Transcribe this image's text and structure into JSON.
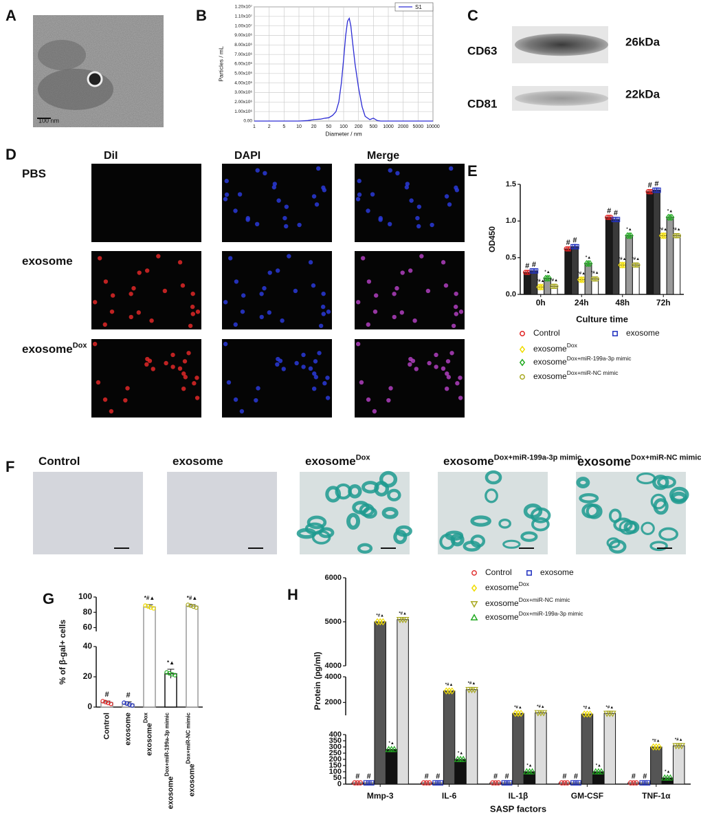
{
  "panel_labels": [
    "A",
    "B",
    "C",
    "D",
    "E",
    "F",
    "G",
    "H"
  ],
  "tem_image": {
    "scale_bar": "100 nm"
  },
  "western_blot": {
    "rows": [
      {
        "protein": "CD63",
        "size": "26kDa"
      },
      {
        "protein": "CD81",
        "size": "22kDa"
      }
    ]
  },
  "fluorescence": {
    "columns": [
      "DiI",
      "DAPI",
      "Merge"
    ],
    "rows": [
      {
        "label": "PBS"
      },
      {
        "label": "exosome"
      },
      {
        "label": "exosome",
        "sup": "Dox"
      }
    ]
  },
  "staining": {
    "columns": [
      {
        "label": "Control"
      },
      {
        "label": "exosome"
      },
      {
        "label": "exosome",
        "sup": "Dox"
      },
      {
        "label": "exosome",
        "sup": "Dox+miR-199a-3p mimic"
      },
      {
        "label": "exosome",
        "sup": "Dox+miR-NC mimic"
      }
    ]
  },
  "chart_data": [
    {
      "type": "line",
      "xlabel": "Diameter / nm",
      "ylabel": "Particles / mL",
      "xscale": "log",
      "xlim": [
        1,
        10000
      ],
      "xticks": [
        1,
        2,
        5,
        10,
        20,
        50,
        100,
        200,
        500,
        1000,
        2000,
        5000,
        10000
      ],
      "ylim": [
        0,
        12000000
      ],
      "yticks": [
        {
          "value": 0,
          "label": "0.00"
        },
        {
          "value": 1000000,
          "label": "1.00x10⁶"
        },
        {
          "value": 2000000,
          "label": "2.00x10⁶"
        },
        {
          "value": 3000000,
          "label": "3.00x10⁶"
        },
        {
          "value": 4000000,
          "label": "4.00x10⁶"
        },
        {
          "value": 5000000,
          "label": "5.00x10⁶"
        },
        {
          "value": 6000000,
          "label": "6.00x10⁶"
        },
        {
          "value": 7000000,
          "label": "7.00x10⁶"
        },
        {
          "value": 8000000,
          "label": "8.00x10⁶"
        },
        {
          "value": 9000000,
          "label": "9.00x10⁶"
        },
        {
          "value": 10000000,
          "label": "1.00x10⁷"
        },
        {
          "value": 11000000,
          "label": "1.10x10⁷"
        },
        {
          "value": 12000000,
          "label": "1.20x10⁷"
        }
      ],
      "grid": true,
      "legend": "upper right",
      "x": [
        1,
        10,
        15,
        20,
        30,
        40,
        50,
        60,
        70,
        80,
        90,
        100,
        110,
        120,
        130,
        140,
        150,
        170,
        200,
        250,
        300,
        400,
        500,
        600,
        700,
        10000
      ],
      "series": [
        {
          "name": "S1",
          "color": "#2a2ad4",
          "values": [
            0,
            0,
            50000,
            150000,
            200000,
            300000,
            350000,
            600000,
            1000000,
            2000000,
            4000000,
            6500000,
            9000000,
            10500000,
            10800000,
            10000000,
            8500000,
            6000000,
            3500000,
            1500000,
            500000,
            150000,
            300000,
            50000,
            0,
            0
          ]
        }
      ]
    },
    {
      "type": "grouped-bar",
      "xlabel": "Culture time",
      "ylabel": "OD450",
      "legend": "bottom",
      "categories": [
        "0h",
        "24h",
        "48h",
        "72h"
      ],
      "ylim": [
        0,
        1.5
      ],
      "yticks": [
        {
          "value": 0,
          "label": "0.0"
        },
        0.5,
        {
          "value": 1,
          "label": "1.0"
        },
        1.5
      ],
      "series": [
        {
          "name": "Control",
          "color": "#e02020",
          "bar_color": "#1a1a1a",
          "marker": "circle",
          "sig": "#",
          "values": [
            0.3,
            0.62,
            1.05,
            1.4
          ]
        },
        {
          "name": "exosome",
          "color": "#2030c0",
          "bar_color": "#3a3a3a",
          "marker": "square",
          "sig": "#",
          "values": [
            0.32,
            0.65,
            1.02,
            1.42
          ]
        },
        {
          "name": "exosome",
          "name_sup": "Dox",
          "color": "#f0dc00",
          "bar_color": "#ffffff",
          "marker": "diamond",
          "sig": "*#▲",
          "values": [
            0.1,
            0.2,
            0.4,
            0.8
          ]
        },
        {
          "name": "exosome",
          "name_sup": "Dox+miR-199a-3p mimic",
          "color": "#22aa22",
          "bar_color": "#9a9a9a",
          "marker": "diamond",
          "sig": "*▲",
          "values": [
            0.22,
            0.42,
            0.8,
            1.05
          ]
        },
        {
          "name": "exosome",
          "name_sup": "Dox+miR-NC mimic",
          "color": "#a8a820",
          "bar_color": "#ffffff",
          "marker": "circle",
          "sig": "*#▲",
          "values": [
            0.11,
            0.21,
            0.4,
            0.8
          ]
        }
      ]
    },
    {
      "type": "bar",
      "ylabel": "% of β-gal+ cells",
      "categories": [
        {
          "label": "Control"
        },
        {
          "label": "exosome"
        },
        {
          "label": "exosome",
          "sup": "Dox"
        },
        {
          "label": "exosome",
          "sup": "Dox+miR-199a-3p mimic"
        },
        {
          "label": "exosome",
          "sup": "Dox+miR-NC mimic"
        }
      ],
      "values": [
        3,
        2,
        87,
        22,
        88
      ],
      "errors": [
        1,
        1.5,
        3,
        3,
        2
      ],
      "colors": [
        "#e02020",
        "#2030c0",
        "#f0dc00",
        "#22aa22",
        "#a8a820"
      ],
      "sig_labels": [
        "#",
        "#",
        "*#▲",
        "*▲",
        "*#▲"
      ],
      "y_segments": [
        {
          "ylim": [
            0,
            40
          ],
          "yticks": [
            0,
            20,
            40
          ]
        },
        {
          "ylim": [
            55,
            100
          ],
          "yticks": [
            60,
            80,
            100
          ]
        }
      ]
    },
    {
      "type": "grouped-bar",
      "xlabel": "SASP factors",
      "ylabel": "Protein (pg/ml)",
      "legend": "top",
      "categories": [
        "Mmp-3",
        "IL-6",
        "IL-1β",
        "GM-CSF",
        "TNF-1α"
      ],
      "y_segments": [
        {
          "ylim": [
            0,
            400
          ],
          "yticks": [
            0,
            50,
            100,
            150,
            200,
            250,
            300,
            350,
            400
          ]
        },
        {
          "ylim": [
            1000,
            4000
          ],
          "yticks": [
            2000,
            4000
          ]
        },
        {
          "ylim": [
            4000,
            6000
          ],
          "yticks": [
            4000,
            5000,
            6000
          ]
        }
      ],
      "series": [
        {
          "name": "Control",
          "color": "#e03030",
          "bar_color": "#ffffff",
          "marker": "circle",
          "sig": "#",
          "values": [
            10,
            10,
            10,
            10,
            10
          ]
        },
        {
          "name": "exosome",
          "color": "#2030c0",
          "bar_color": "#ffffff",
          "marker": "square",
          "sig": "#",
          "values": [
            10,
            10,
            10,
            10,
            10
          ]
        },
        {
          "name": "exosome",
          "name_sup": "Dox",
          "color": "#f0dc00",
          "bar_color": "#555555",
          "marker": "diamond",
          "sig": "*#▲",
          "values": [
            5000,
            2900,
            1150,
            1100,
            300
          ]
        },
        {
          "name": "exosome",
          "name_sup": "Dox+miR-199a-3p mimic",
          "color": "#22aa22",
          "bar_color": "#111111",
          "marker": "triangle-up",
          "sig": "*▲",
          "values": [
            280,
            200,
            100,
            100,
            50
          ]
        },
        {
          "name": "exosome",
          "name_sup": "Dox+miR-NC mimic",
          "color": "#a8a820",
          "bar_color": "#dddddd",
          "marker": "triangle-down",
          "sig": "*#▲",
          "values": [
            5050,
            3000,
            1200,
            1150,
            310
          ]
        }
      ]
    }
  ]
}
